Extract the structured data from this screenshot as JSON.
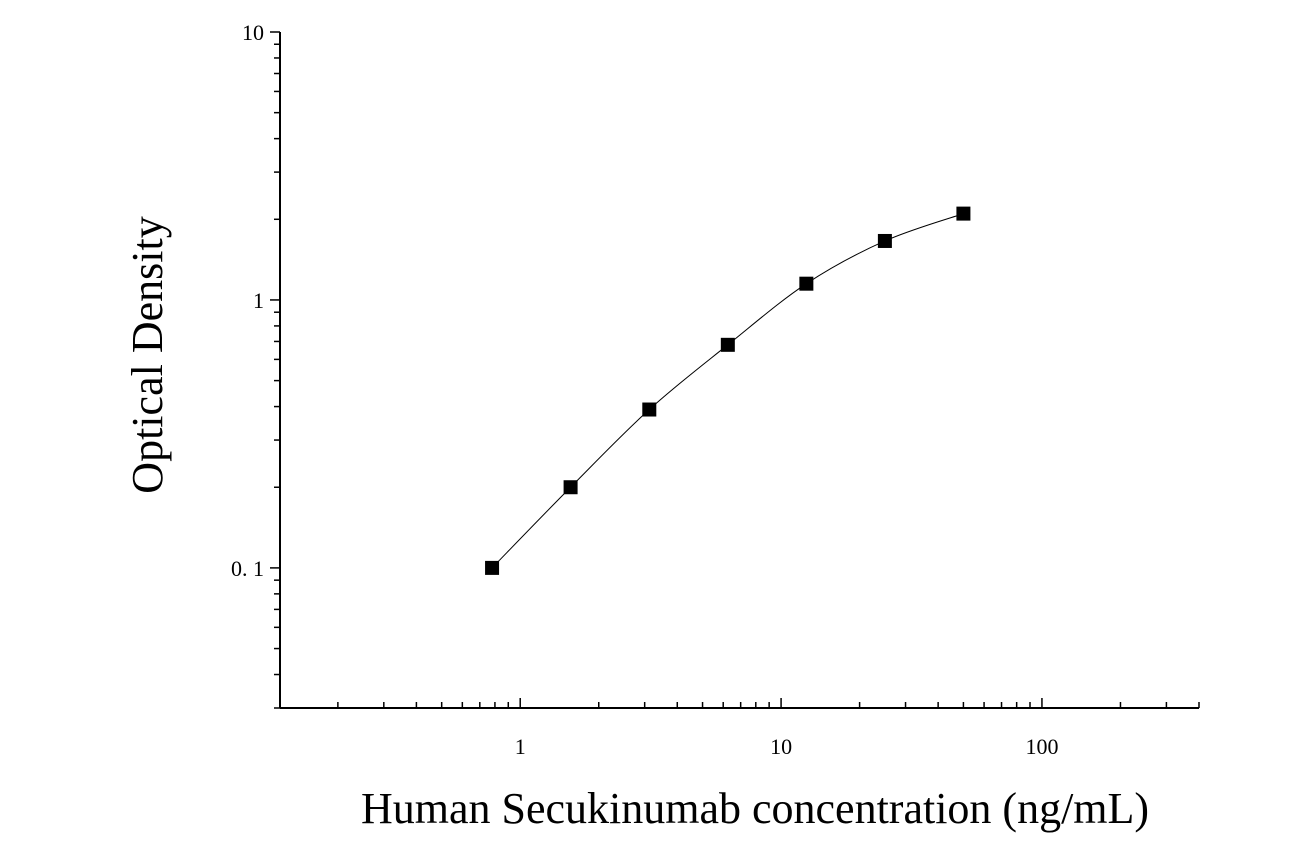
{
  "chart_data": {
    "type": "scatter",
    "xlabel": "Human Secukinumab concentration (ng/mL)",
    "ylabel": "Optical Density",
    "x_scale": "log",
    "y_scale": "log",
    "xlim": [
      0.12,
      400
    ],
    "ylim": [
      0.03,
      10
    ],
    "x_ticks": [
      {
        "value": 1,
        "label": "1"
      },
      {
        "value": 10,
        "label": "10"
      },
      {
        "value": 100,
        "label": "100"
      }
    ],
    "y_ticks": [
      {
        "value": 0.1,
        "label": "0. 1"
      },
      {
        "value": 1,
        "label": "1"
      },
      {
        "value": 10,
        "label": "10"
      }
    ],
    "grid": false,
    "legend": "none",
    "marker": "square",
    "fit_line": "smooth curve through points",
    "series": [
      {
        "x": [
          0.78,
          1.56,
          3.125,
          6.25,
          12.5,
          25,
          50
        ],
        "y": [
          0.1,
          0.2,
          0.39,
          0.68,
          1.15,
          1.66,
          2.1
        ]
      }
    ],
    "colors": {
      "marker": "#000000",
      "line": "#000000",
      "axis": "#000000"
    }
  }
}
